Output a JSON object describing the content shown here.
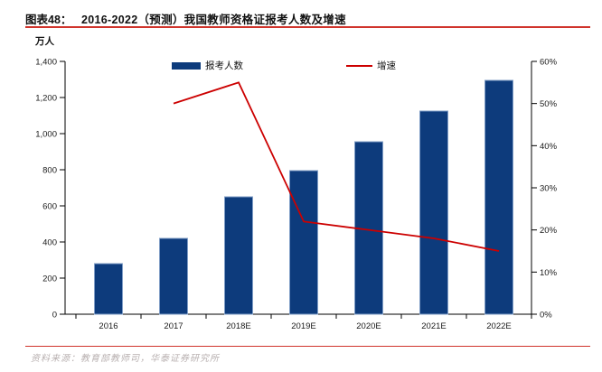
{
  "meta": {
    "figure_label": "图表48：",
    "title": "2016-2022（预测）我国教师资格证报考人数及增速",
    "source": "资料来源：教育部教师司，华泰证券研究所"
  },
  "colors": {
    "bar": "#0d3b7c",
    "bar_border": "#7f9dc6",
    "line": "#cc0000",
    "rule": "#d0342c",
    "axis": "#000000",
    "text": "#1a1a1a",
    "source_text": "#b8b0b0"
  },
  "chart_data": {
    "type": "bar",
    "title": "2016-2022（预测）我国教师资格证报考人数及增速",
    "categories": [
      "2016",
      "2017",
      "2018E",
      "2019E",
      "2020E",
      "2021E",
      "2022E"
    ],
    "series": [
      {
        "name": "报考人数",
        "type": "bar",
        "axis": "left",
        "unit": "万人",
        "values": [
          280,
          420,
          650,
          795,
          955,
          1125,
          1295
        ]
      },
      {
        "name": "增速",
        "type": "line",
        "axis": "right",
        "unit": "%",
        "values": [
          null,
          50,
          55,
          22,
          20,
          18,
          15
        ]
      }
    ],
    "left_axis": {
      "label": "万人",
      "min": 0,
      "max": 1400,
      "step": 200,
      "tick_labels": [
        "0",
        "200",
        "400",
        "600",
        "800",
        "1,000",
        "1,200",
        "1,400"
      ]
    },
    "right_axis": {
      "min": 0,
      "max": 60,
      "step": 10,
      "tick_labels": [
        "0%",
        "10%",
        "20%",
        "30%",
        "40%",
        "50%",
        "60%"
      ]
    },
    "grid": false,
    "legend_position": "top"
  }
}
